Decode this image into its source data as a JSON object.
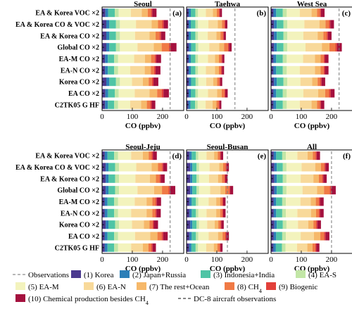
{
  "chart_data": {
    "type": "bar",
    "stacked": true,
    "orientation": "horizontal",
    "xlabel": "CO (ppbv)",
    "xlim": [
      0,
      270
    ],
    "xticks": [
      0,
      100,
      200
    ],
    "grid": false,
    "legend_placement": "bottom",
    "categories": [
      "EA & Korea VOC ×2",
      "EA & Korea CO & VOC ×2",
      "EA & Korea CO ×2",
      "Global CO ×2",
      "EA-M CO ×2",
      "EA-N CO ×2",
      "Korea CO ×2",
      "EA CO ×2",
      "C2TK05 G HF"
    ],
    "legend": [
      {
        "label": "Observations",
        "kind": "dashed-line",
        "color": "#8c8c8c"
      },
      {
        "label": "(1) Korea",
        "kind": "patch",
        "color": "#4b3a8f"
      },
      {
        "label": "(2) Japan+Russia",
        "kind": "patch",
        "color": "#2c7fb8"
      },
      {
        "label": "(3) Indonesia+India",
        "kind": "patch",
        "color": "#4fc4a5"
      },
      {
        "label": "(4) EA-S",
        "kind": "patch",
        "color": "#c2e6a6"
      },
      {
        "label": "(5) EA-M",
        "kind": "patch",
        "color": "#f3f3bd"
      },
      {
        "label": "(6) EA-N",
        "kind": "patch",
        "color": "#f8d99a"
      },
      {
        "label": "(7) The rest+Ocean",
        "kind": "patch",
        "color": "#f6b86a"
      },
      {
        "label": "(8) CH",
        "sub": "4",
        "kind": "patch",
        "color": "#f07a45"
      },
      {
        "label": "(9) Biogenic",
        "kind": "patch",
        "color": "#e2403a"
      },
      {
        "label": "(10) Chemical production besides CH",
        "sub": "4",
        "kind": "patch",
        "color": "#a4103e"
      },
      {
        "label": "DC-8 aircraft observations",
        "kind": "dashed-line",
        "color": "#3a3a3a"
      }
    ],
    "panels": [
      {
        "title": "Seoul",
        "tag": "(a)",
        "observation": 225,
        "bars": [
          [
            11,
            9,
            22,
            13,
            40,
            36,
            20,
            11,
            4,
            14
          ],
          [
            14,
            10,
            22,
            13,
            53,
            52,
            21,
            14,
            5,
            14
          ],
          [
            14,
            10,
            22,
            13,
            50,
            48,
            20,
            13,
            5,
            14
          ],
          [
            14,
            10,
            22,
            13,
            58,
            54,
            26,
            24,
            6,
            19
          ],
          [
            10,
            9,
            21,
            13,
            53,
            36,
            20,
            12,
            5,
            16
          ],
          [
            10,
            9,
            21,
            13,
            40,
            48,
            20,
            11,
            5,
            16
          ],
          [
            14,
            10,
            22,
            13,
            40,
            36,
            19,
            11,
            5,
            16
          ],
          [
            11,
            9,
            22,
            13,
            53,
            49,
            25,
            15,
            6,
            18
          ],
          [
            10,
            9,
            21,
            13,
            40,
            36,
            19,
            11,
            5,
            12
          ]
        ]
      },
      {
        "title": "Taehwa",
        "tag": "(b)",
        "observation": 160,
        "bars": [
          [
            7,
            7,
            15,
            9,
            26,
            23,
            13,
            7,
            3,
            7
          ],
          [
            7,
            7,
            15,
            9,
            34,
            31,
            14,
            8,
            3,
            7
          ],
          [
            7,
            7,
            15,
            9,
            32,
            29,
            13,
            8,
            3,
            7
          ],
          [
            8,
            7,
            15,
            9,
            36,
            33,
            16,
            13,
            3,
            9
          ],
          [
            7,
            7,
            15,
            9,
            33,
            23,
            13,
            8,
            3,
            7
          ],
          [
            7,
            7,
            15,
            9,
            26,
            30,
            13,
            7,
            3,
            7
          ],
          [
            8,
            7,
            15,
            9,
            26,
            23,
            13,
            7,
            3,
            7
          ],
          [
            7,
            7,
            15,
            9,
            33,
            30,
            15,
            9,
            3,
            8
          ],
          [
            6,
            7,
            15,
            9,
            26,
            23,
            13,
            7,
            3,
            6
          ]
        ]
      },
      {
        "title": "West Sea",
        "tag": "(c)",
        "observation": 225,
        "bars": [
          [
            8,
            9,
            22,
            13,
            43,
            39,
            18,
            9,
            4,
            12
          ],
          [
            10,
            9,
            22,
            13,
            56,
            50,
            20,
            12,
            4,
            12
          ],
          [
            10,
            9,
            22,
            13,
            53,
            47,
            19,
            11,
            4,
            12
          ],
          [
            10,
            9,
            22,
            13,
            60,
            54,
            25,
            20,
            5,
            16
          ],
          [
            8,
            9,
            22,
            13,
            54,
            39,
            19,
            10,
            4,
            12
          ],
          [
            8,
            9,
            22,
            13,
            43,
            50,
            19,
            10,
            4,
            12
          ],
          [
            10,
            9,
            22,
            13,
            43,
            39,
            18,
            9,
            4,
            12
          ],
          [
            8,
            9,
            22,
            13,
            55,
            49,
            23,
            13,
            5,
            13
          ],
          [
            8,
            9,
            22,
            13,
            43,
            39,
            18,
            9,
            4,
            11
          ]
        ]
      },
      {
        "title": "Seoul-Jeju",
        "tag": "(d)",
        "observation": 225,
        "bars": [
          [
            9,
            9,
            22,
            13,
            43,
            39,
            19,
            10,
            4,
            13
          ],
          [
            12,
            9,
            22,
            13,
            57,
            51,
            21,
            13,
            4,
            13
          ],
          [
            12,
            9,
            22,
            13,
            54,
            48,
            20,
            12,
            4,
            13
          ],
          [
            12,
            9,
            22,
            13,
            61,
            55,
            26,
            22,
            5,
            17
          ],
          [
            9,
            9,
            22,
            13,
            55,
            39,
            19,
            11,
            4,
            14
          ],
          [
            9,
            9,
            22,
            13,
            43,
            51,
            19,
            10,
            4,
            14
          ],
          [
            12,
            9,
            22,
            13,
            43,
            39,
            19,
            10,
            4,
            14
          ],
          [
            9,
            9,
            22,
            13,
            56,
            50,
            24,
            14,
            5,
            15
          ],
          [
            9,
            9,
            22,
            13,
            43,
            39,
            18,
            10,
            4,
            11
          ]
        ]
      },
      {
        "title": "Seoul-Busan",
        "tag": "(e)",
        "observation": 135,
        "bars": [
          [
            10,
            7,
            14,
            8,
            27,
            25,
            12,
            7,
            3,
            8
          ],
          [
            12,
            7,
            14,
            8,
            35,
            32,
            13,
            8,
            3,
            8
          ],
          [
            12,
            7,
            14,
            8,
            33,
            30,
            13,
            8,
            3,
            8
          ],
          [
            12,
            7,
            14,
            8,
            37,
            34,
            16,
            13,
            3,
            10
          ],
          [
            10,
            7,
            14,
            8,
            34,
            25,
            13,
            7,
            3,
            8
          ],
          [
            10,
            7,
            14,
            8,
            27,
            32,
            13,
            7,
            3,
            8
          ],
          [
            12,
            7,
            14,
            8,
            27,
            25,
            12,
            7,
            3,
            8
          ],
          [
            10,
            7,
            14,
            8,
            34,
            31,
            15,
            9,
            3,
            9
          ],
          [
            9,
            7,
            14,
            8,
            27,
            25,
            12,
            7,
            3,
            7
          ]
        ]
      },
      {
        "title": "All",
        "tag": "(f)",
        "observation": 200,
        "bars": [
          [
            9,
            8,
            20,
            12,
            38,
            34,
            17,
            9,
            4,
            11
          ],
          [
            11,
            8,
            20,
            12,
            50,
            45,
            19,
            11,
            4,
            11
          ],
          [
            11,
            8,
            20,
            12,
            47,
            42,
            18,
            11,
            4,
            11
          ],
          [
            11,
            8,
            20,
            12,
            53,
            48,
            23,
            19,
            5,
            15
          ],
          [
            9,
            8,
            20,
            12,
            48,
            34,
            17,
            10,
            4,
            12
          ],
          [
            9,
            8,
            20,
            12,
            38,
            45,
            17,
            9,
            4,
            12
          ],
          [
            11,
            8,
            20,
            12,
            38,
            34,
            17,
            9,
            4,
            12
          ],
          [
            9,
            8,
            20,
            12,
            49,
            44,
            21,
            12,
            5,
            13
          ],
          [
            8,
            8,
            20,
            12,
            38,
            34,
            17,
            9,
            4,
            10
          ]
        ]
      }
    ]
  }
}
